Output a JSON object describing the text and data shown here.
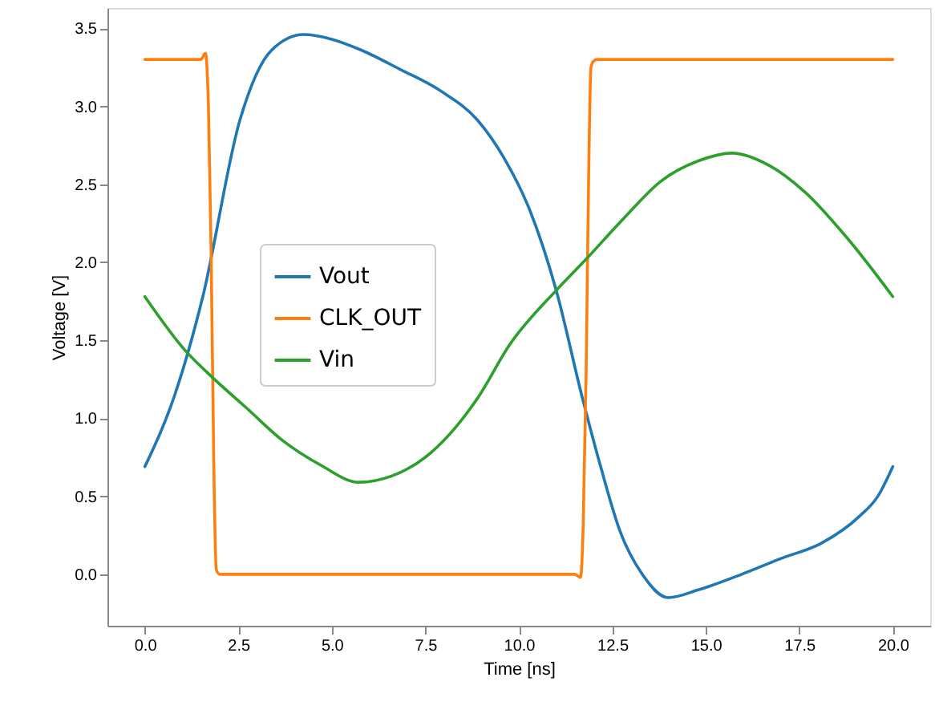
{
  "chart_data": {
    "type": "line",
    "xlabel": "Time [ns]",
    "ylabel": "Voltage [V]",
    "xlim": [
      -1.0,
      21.0
    ],
    "ylim": [
      -0.33,
      3.63
    ],
    "xticks": [
      {
        "value": 0,
        "label": "0.0"
      },
      {
        "value": 2.5,
        "label": "2.5"
      },
      {
        "value": 5,
        "label": "5.0"
      },
      {
        "value": 7.5,
        "label": "7.5"
      },
      {
        "value": 10,
        "label": "10.0"
      },
      {
        "value": 12.5,
        "label": "12.5"
      },
      {
        "value": 15,
        "label": "15.0"
      },
      {
        "value": 17.5,
        "label": "17.5"
      },
      {
        "value": 20,
        "label": "20.0"
      }
    ],
    "yticks": [
      {
        "value": 0,
        "label": "0.0"
      },
      {
        "value": 0.5,
        "label": "0.5"
      },
      {
        "value": 1,
        "label": "1.0"
      },
      {
        "value": 1.5,
        "label": "1.5"
      },
      {
        "value": 2,
        "label": "2.0"
      },
      {
        "value": 2.5,
        "label": "2.5"
      },
      {
        "value": 3,
        "label": "3.0"
      },
      {
        "value": 3.5,
        "label": "3.5"
      }
    ],
    "grid": false,
    "legend": "left",
    "line_style": "solid",
    "marker": "none",
    "series": [
      {
        "name": "Vout",
        "color": "#1f77b4",
        "x": [
          0,
          0.8,
          1.55,
          2.54,
          3.39,
          4.24,
          5.0,
          5.79,
          6.8,
          7.9,
          8.9,
          9.6,
          10.3,
          11.0,
          11.7,
          12.2,
          12.7,
          13.3,
          14.0,
          14.8,
          15.96,
          17.0,
          18.1,
          19.1,
          19.6,
          20
        ],
        "values": [
          0.69,
          1.15,
          1.78,
          2.91,
          3.36,
          3.46,
          3.43,
          3.36,
          3.24,
          3.1,
          2.91,
          2.67,
          2.33,
          1.82,
          1.13,
          0.68,
          0.28,
          0.0,
          -0.15,
          -0.1,
          0.0,
          0.1,
          0.2,
          0.37,
          0.5,
          0.69
        ]
      },
      {
        "name": "CLK_OUT",
        "color": "#ff7f0e",
        "x": [
          0,
          1.5,
          1.62,
          1.7,
          1.77,
          1.85,
          1.91,
          2.0,
          2.1,
          11.5,
          11.65,
          11.72,
          11.8,
          11.87,
          11.93,
          12.0,
          12.1,
          20
        ],
        "values": [
          3.3,
          3.3,
          3.34,
          3.0,
          2.1,
          0.6,
          0.03,
          0.0,
          0.0,
          0.0,
          -0.02,
          0.3,
          1.3,
          2.6,
          3.25,
          3.29,
          3.3,
          3.3
        ]
      },
      {
        "name": "Vin",
        "color": "#2ca02c",
        "x": [
          0,
          1.06,
          1.77,
          2.7,
          3.67,
          4.7,
          5.72,
          6.6,
          7.5,
          8.9,
          9.75,
          11.0,
          11.8,
          12.8,
          13.8,
          14.8,
          15.7,
          16.7,
          17.65,
          18.8,
          20
        ],
        "values": [
          1.78,
          1.44,
          1.27,
          1.07,
          0.86,
          0.7,
          0.59,
          0.63,
          0.75,
          1.13,
          1.47,
          1.82,
          2.02,
          2.28,
          2.52,
          2.65,
          2.7,
          2.62,
          2.45,
          2.15,
          1.78
        ]
      }
    ]
  }
}
